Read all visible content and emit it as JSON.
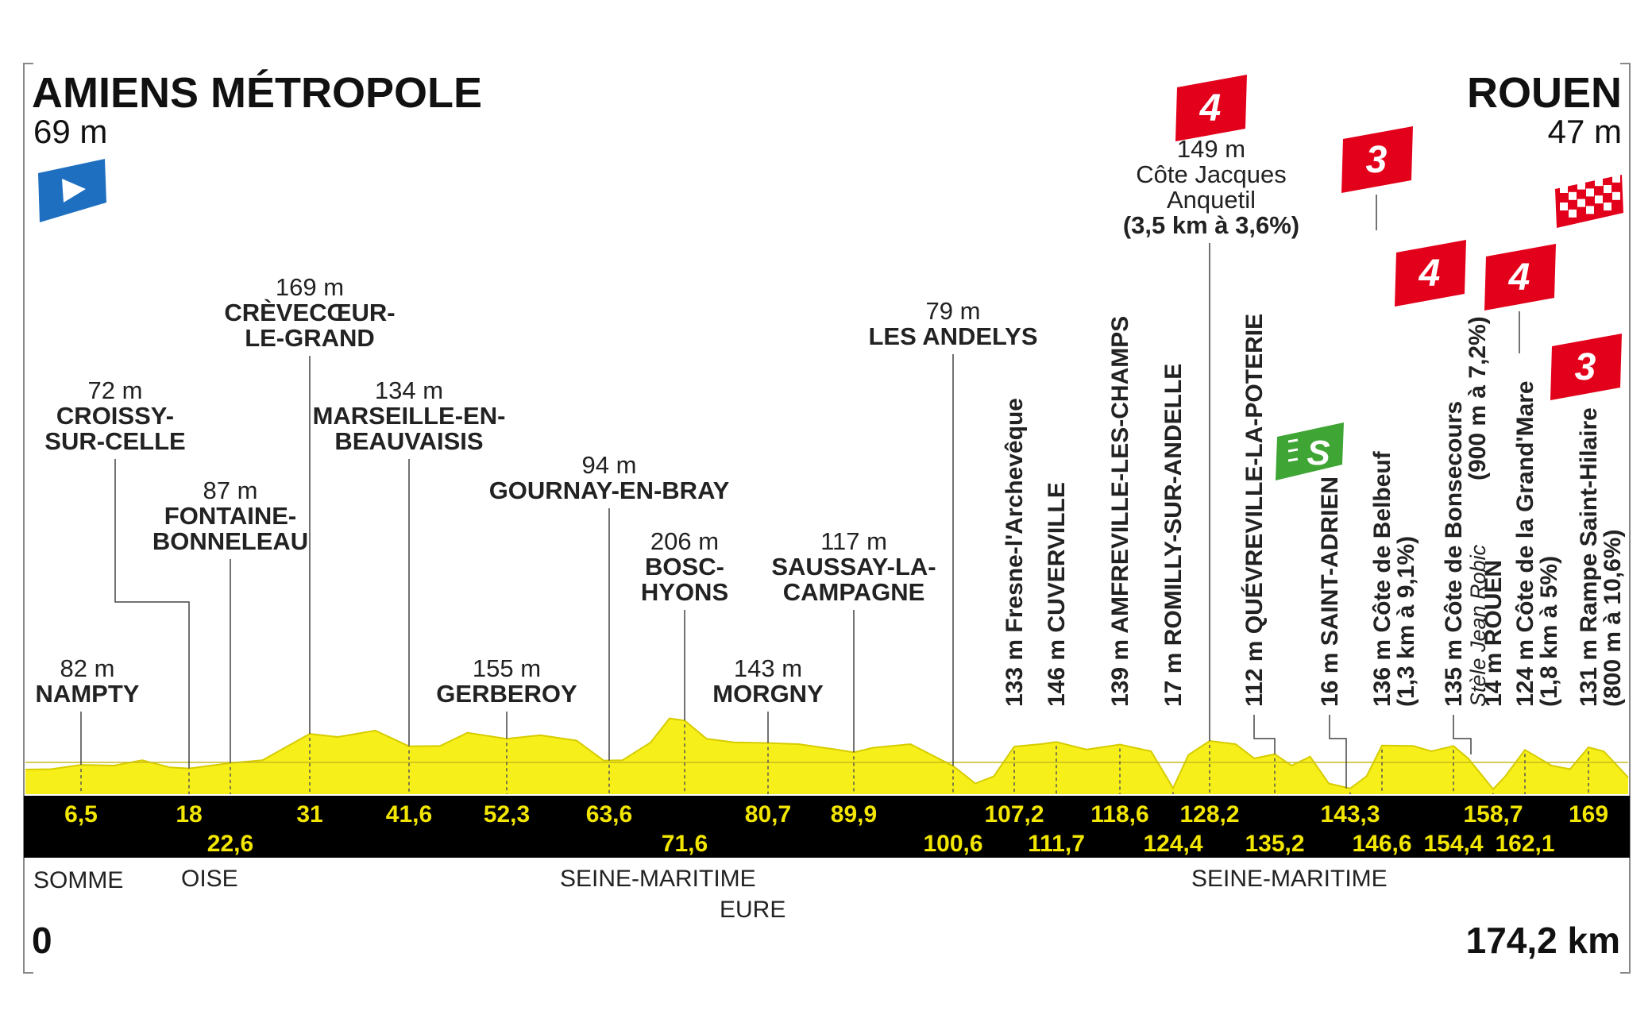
{
  "start": {
    "name": "AMIENS MÉTROPOLE",
    "altitude": "69 m",
    "km": "0"
  },
  "finish": {
    "name": "ROUEN",
    "altitude": "47 m",
    "km": "174,2 km"
  },
  "colors": {
    "profile": "#f7ef1a",
    "band": "#000000",
    "km_text": "#f2e600",
    "climb_flag": "#e2001a",
    "sprint_flag": "#3fa535",
    "start_flag": "#1f6fc1"
  },
  "chart_data": {
    "type": "area",
    "title": "",
    "xlim": [
      0,
      174.2
    ],
    "km_markers": [
      "6,5",
      "18",
      "22,6",
      "31",
      "41,6",
      "52,3",
      "63,6",
      "71,6",
      "80,7",
      "89,9",
      "100,6",
      "107,2",
      "111,7",
      "118,6",
      "124,4",
      "128,2",
      "135,2",
      "143,3",
      "146,6",
      "154,4",
      "158,7",
      "162,1",
      "169"
    ],
    "horizontal_points": [
      {
        "km": 6.5,
        "altitude": "82 m",
        "name": "NAMPTY"
      },
      {
        "km": 18,
        "altitude": "72 m",
        "name": "CROISSY- SUR-CELLE"
      },
      {
        "km": 22.6,
        "altitude": "87 m",
        "name": "FONTAINE- BONNELEAU"
      },
      {
        "km": 31,
        "altitude": "169 m",
        "name": "CRÈVECŒUR- LE-GRAND"
      },
      {
        "km": 41.6,
        "altitude": "134 m",
        "name": "MARSEILLE-EN- BEAUVAISIS"
      },
      {
        "km": 52.3,
        "altitude": "155 m",
        "name": "GERBEROY"
      },
      {
        "km": 63.6,
        "altitude": "94 m",
        "name": "GOURNAY-EN-BRAY"
      },
      {
        "km": 71.6,
        "altitude": "206 m",
        "name": "BOSC- HYONS"
      },
      {
        "km": 80.7,
        "altitude": "143 m",
        "name": "MORGNY"
      },
      {
        "km": 89.9,
        "altitude": "117 m",
        "name": "SAUSSAY-LA- CAMPAGNE"
      },
      {
        "km": 100.6,
        "altitude": "79 m",
        "name": "LES ANDELYS"
      },
      {
        "km": 128.2,
        "altitude": "149 m",
        "name": "Côte Jacques Anquetil",
        "detail": "(3,5 km à 3,6%)",
        "category": "4"
      }
    ],
    "vertical_points": [
      {
        "km": 107.2,
        "text": "133 m Fresne-l'Archevêque"
      },
      {
        "km": 111.7,
        "text": "146 m CUVERVILLE"
      },
      {
        "km": 118.6,
        "text": "139 m AMFREVILLE-LES-CHAMPS"
      },
      {
        "km": 124.4,
        "text": "17 m ROMILLY-SUR-ANDELLE"
      },
      {
        "km": 135.2,
        "text": "112 m QUÉVREVILLE-LA-POTERIE"
      },
      {
        "km": 143.3,
        "text": "16 m SAINT-ADRIEN",
        "sprint": "S"
      },
      {
        "km": 146.6,
        "text": "136 m Côte de Belbeuf",
        "detail": "(1,3 km à 9,1%)",
        "category": "3"
      },
      {
        "km": 154.4,
        "text": "135 m Côte de Bonsecours",
        "note": "Stèle Jean Robic",
        "detail": "(900 m à 7,2%)",
        "category": "4"
      },
      {
        "km": 158.7,
        "text": "14 m ROUEN"
      },
      {
        "km": 162.1,
        "text": "124 m Côte de la Grand'Mare",
        "detail": "(1,8 km à 5%)",
        "category": "4"
      },
      {
        "km": 169,
        "text": "131 m Rampe Saint-Hilaire",
        "detail": "(800 m à 10,6%)",
        "category": "3"
      }
    ],
    "departments": [
      "SOMME",
      "OISE",
      "SEINE-MARITIME",
      "EURE",
      "SEINE-MARITIME"
    ]
  }
}
